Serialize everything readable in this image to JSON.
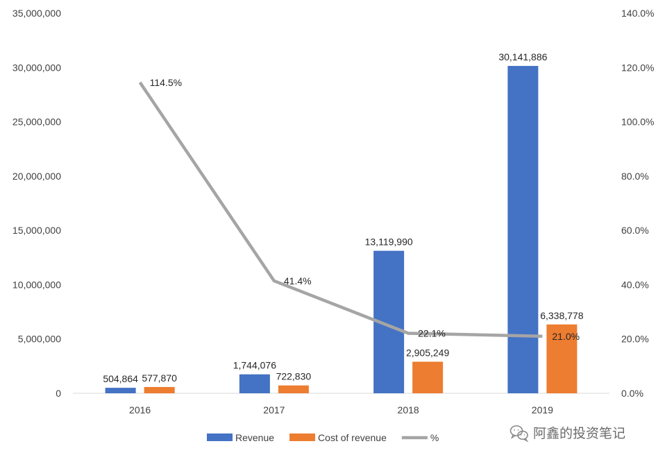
{
  "chart_data": {
    "type": "bar",
    "categories": [
      "2016",
      "2017",
      "2018",
      "2019"
    ],
    "series": [
      {
        "name": "Revenue",
        "kind": "bar",
        "axis": "left",
        "color": "#4472C4",
        "values": [
          504864,
          1744076,
          13119990,
          30141886
        ],
        "labels": [
          "504,864",
          "1,744,076",
          "13,119,990",
          "30,141,886"
        ]
      },
      {
        "name": "Cost of revenue",
        "kind": "bar",
        "axis": "left",
        "color": "#ED7D31",
        "values": [
          577870,
          722830,
          2905249,
          6338778
        ],
        "labels": [
          "577,870",
          "722,830",
          "2,905,249",
          "6,338,778"
        ]
      },
      {
        "name": "%",
        "kind": "line",
        "axis": "right",
        "color": "#A5A5A5",
        "values": [
          114.5,
          41.4,
          22.1,
          21.0
        ],
        "labels": [
          "114.5%",
          "41.4%",
          "22.1%",
          "21.0%"
        ]
      }
    ],
    "y_left": {
      "min": 0,
      "max": 35000000,
      "ticks": [
        "0",
        "5,000,000",
        "10,000,000",
        "15,000,000",
        "20,000,000",
        "25,000,000",
        "30,000,000",
        "35,000,000"
      ]
    },
    "y_right": {
      "min": 0,
      "max": 140,
      "ticks": [
        "0.0%",
        "20.0%",
        "40.0%",
        "60.0%",
        "80.0%",
        "100.0%",
        "120.0%",
        "140.0%"
      ]
    },
    "grid": false,
    "legend": "bottom"
  },
  "watermark": {
    "text": "阿鑫的投资笔记",
    "icon": "wechat-icon"
  }
}
